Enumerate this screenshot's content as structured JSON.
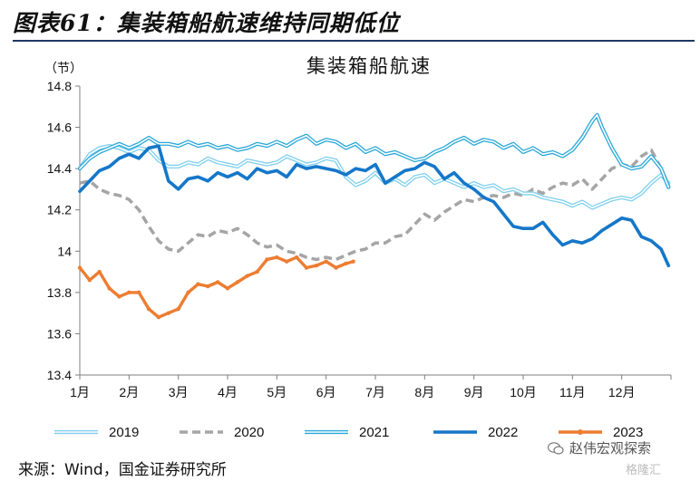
{
  "header": {
    "figure_title": "图表61：集装箱船航速维持同期低位"
  },
  "chart_data": {
    "type": "line",
    "title": "集装箱船航速",
    "yunit": "（节）",
    "ylim": [
      13.4,
      14.8
    ],
    "yticks": [
      13.4,
      13.6,
      13.8,
      14,
      14.2,
      14.4,
      14.6,
      14.8
    ],
    "ytick_labels": [
      "13.4",
      "13.6",
      "13.8",
      "14",
      "14.2",
      "14.4",
      "14.6",
      "14.8"
    ],
    "xlim": [
      1,
      13
    ],
    "x_month_labels": [
      "1月",
      "2月",
      "3月",
      "4月",
      "5月",
      "6月",
      "7月",
      "8月",
      "9月",
      "10月",
      "11月",
      "12月"
    ],
    "grid": false,
    "legend_position": "bottom",
    "series": [
      {
        "name": "2019",
        "color": "#7fcfee",
        "style": "double",
        "x": [
          1.0,
          1.2,
          1.4,
          1.6,
          1.8,
          2.0,
          2.2,
          2.4,
          2.6,
          2.8,
          3.0,
          3.2,
          3.4,
          3.6,
          3.8,
          4.0,
          4.2,
          4.4,
          4.6,
          4.8,
          5.0,
          5.2,
          5.4,
          5.6,
          5.8,
          6.0,
          6.2,
          6.4,
          6.6,
          6.8,
          7.0,
          7.2,
          7.4,
          7.6,
          7.8,
          8.0,
          8.2,
          8.4,
          8.6,
          8.8,
          9.0,
          9.2,
          9.4,
          9.6,
          9.8,
          10.0,
          10.2,
          10.4,
          10.6,
          10.8,
          11.0,
          11.2,
          11.4,
          11.6,
          11.8,
          12.0,
          12.2,
          12.4,
          12.6,
          12.8,
          12.95
        ],
        "values": [
          14.4,
          14.47,
          14.5,
          14.51,
          14.5,
          14.48,
          14.5,
          14.49,
          14.44,
          14.41,
          14.41,
          14.43,
          14.42,
          14.45,
          14.43,
          14.42,
          14.41,
          14.44,
          14.43,
          14.42,
          14.43,
          14.46,
          14.44,
          14.42,
          14.43,
          14.45,
          14.44,
          14.36,
          14.32,
          14.34,
          14.38,
          14.33,
          14.35,
          14.32,
          14.36,
          14.37,
          14.33,
          14.35,
          14.33,
          14.31,
          14.33,
          14.31,
          14.32,
          14.29,
          14.3,
          14.28,
          14.28,
          14.26,
          14.25,
          14.24,
          14.22,
          14.24,
          14.21,
          14.23,
          14.25,
          14.26,
          14.25,
          14.28,
          14.33,
          14.37,
          14.33
        ]
      },
      {
        "name": "2020",
        "color": "#a5a5a5",
        "style": "dashed",
        "x": [
          1.0,
          1.2,
          1.4,
          1.6,
          1.8,
          2.0,
          2.2,
          2.4,
          2.6,
          2.8,
          3.0,
          3.2,
          3.4,
          3.6,
          3.8,
          4.0,
          4.2,
          4.4,
          4.6,
          4.8,
          5.0,
          5.2,
          5.4,
          5.6,
          5.8,
          6.0,
          6.2,
          6.4,
          6.6,
          6.8,
          7.0,
          7.2,
          7.4,
          7.6,
          7.8,
          8.0,
          8.2,
          8.4,
          8.6,
          8.8,
          9.0,
          9.2,
          9.4,
          9.6,
          9.8,
          10.0,
          10.2,
          10.4,
          10.6,
          10.8,
          11.0,
          11.2,
          11.4,
          11.6,
          11.8,
          12.0,
          12.2,
          12.4,
          12.6,
          12.8,
          12.95
        ],
        "values": [
          14.33,
          14.34,
          14.3,
          14.28,
          14.27,
          14.25,
          14.2,
          14.12,
          14.05,
          14.01,
          14.0,
          14.04,
          14.08,
          14.07,
          14.1,
          14.09,
          14.11,
          14.08,
          14.04,
          14.02,
          14.03,
          14.0,
          13.99,
          13.97,
          13.96,
          13.97,
          13.96,
          13.98,
          14.0,
          14.01,
          14.04,
          14.04,
          14.07,
          14.08,
          14.13,
          14.18,
          14.15,
          14.19,
          14.22,
          14.25,
          14.24,
          14.26,
          14.27,
          14.26,
          14.28,
          14.27,
          14.3,
          14.28,
          14.31,
          14.33,
          14.32,
          14.35,
          14.3,
          14.35,
          14.4,
          14.42,
          14.41,
          14.46,
          14.49,
          14.4,
          14.32
        ]
      },
      {
        "name": "2021",
        "color": "#2aa7d8",
        "style": "double",
        "x": [
          1.0,
          1.2,
          1.4,
          1.6,
          1.8,
          2.0,
          2.2,
          2.4,
          2.6,
          2.8,
          3.0,
          3.2,
          3.4,
          3.6,
          3.8,
          4.0,
          4.2,
          4.4,
          4.6,
          4.8,
          5.0,
          5.2,
          5.4,
          5.6,
          5.8,
          6.0,
          6.2,
          6.4,
          6.6,
          6.8,
          7.0,
          7.2,
          7.4,
          7.6,
          7.8,
          8.0,
          8.2,
          8.4,
          8.6,
          8.8,
          9.0,
          9.2,
          9.4,
          9.6,
          9.8,
          10.0,
          10.2,
          10.4,
          10.6,
          10.8,
          11.0,
          11.2,
          11.4,
          11.5,
          11.6,
          11.8,
          12.0,
          12.2,
          12.4,
          12.6,
          12.8,
          12.95
        ],
        "values": [
          14.4,
          14.45,
          14.48,
          14.5,
          14.52,
          14.5,
          14.52,
          14.55,
          14.52,
          14.52,
          14.51,
          14.53,
          14.51,
          14.52,
          14.5,
          14.51,
          14.49,
          14.5,
          14.52,
          14.51,
          14.53,
          14.51,
          14.54,
          14.56,
          14.52,
          14.54,
          14.53,
          14.5,
          14.52,
          14.48,
          14.5,
          14.47,
          14.48,
          14.46,
          14.44,
          14.45,
          14.48,
          14.5,
          14.53,
          14.55,
          14.52,
          14.54,
          14.53,
          14.5,
          14.52,
          14.48,
          14.5,
          14.47,
          14.48,
          14.46,
          14.49,
          14.55,
          14.63,
          14.66,
          14.6,
          14.5,
          14.42,
          14.4,
          14.41,
          14.46,
          14.4,
          14.31
        ]
      },
      {
        "name": "2022",
        "color": "#1577c9",
        "style": "solid-thick",
        "x": [
          1.0,
          1.2,
          1.4,
          1.6,
          1.8,
          2.0,
          2.2,
          2.4,
          2.6,
          2.8,
          3.0,
          3.2,
          3.4,
          3.6,
          3.8,
          4.0,
          4.2,
          4.4,
          4.6,
          4.8,
          5.0,
          5.2,
          5.4,
          5.6,
          5.8,
          6.0,
          6.2,
          6.4,
          6.6,
          6.8,
          7.0,
          7.2,
          7.4,
          7.6,
          7.8,
          8.0,
          8.2,
          8.4,
          8.6,
          8.8,
          9.0,
          9.2,
          9.4,
          9.6,
          9.8,
          10.0,
          10.2,
          10.4,
          10.6,
          10.8,
          11.0,
          11.2,
          11.4,
          11.6,
          11.8,
          12.0,
          12.2,
          12.4,
          12.6,
          12.8,
          12.95
        ],
        "values": [
          14.29,
          14.34,
          14.39,
          14.41,
          14.45,
          14.47,
          14.45,
          14.5,
          14.51,
          14.34,
          14.3,
          14.35,
          14.36,
          14.34,
          14.38,
          14.36,
          14.38,
          14.35,
          14.4,
          14.38,
          14.39,
          14.36,
          14.42,
          14.4,
          14.41,
          14.4,
          14.39,
          14.37,
          14.4,
          14.39,
          14.42,
          14.33,
          14.36,
          14.39,
          14.4,
          14.43,
          14.41,
          14.35,
          14.38,
          14.33,
          14.3,
          14.26,
          14.24,
          14.18,
          14.12,
          14.11,
          14.11,
          14.14,
          14.08,
          14.03,
          14.05,
          14.04,
          14.06,
          14.1,
          14.13,
          14.16,
          14.15,
          14.07,
          14.05,
          14.01,
          13.93
        ]
      },
      {
        "name": "2023",
        "color": "#ed7d31",
        "style": "solid-marker",
        "x": [
          1.0,
          1.2,
          1.4,
          1.6,
          1.8,
          2.0,
          2.2,
          2.4,
          2.6,
          2.8,
          3.0,
          3.2,
          3.4,
          3.6,
          3.8,
          4.0,
          4.2,
          4.4,
          4.6,
          4.8,
          5.0,
          5.2,
          5.4,
          5.6,
          5.8,
          6.0,
          6.2,
          6.4,
          6.55
        ],
        "values": [
          13.92,
          13.86,
          13.9,
          13.82,
          13.78,
          13.8,
          13.8,
          13.72,
          13.68,
          13.7,
          13.72,
          13.8,
          13.84,
          13.83,
          13.85,
          13.82,
          13.85,
          13.88,
          13.9,
          13.96,
          13.97,
          13.95,
          13.97,
          13.92,
          13.93,
          13.95,
          13.92,
          13.94,
          13.95
        ]
      }
    ]
  },
  "legend": {
    "items": [
      {
        "label": "2019"
      },
      {
        "label": "2020"
      },
      {
        "label": "2021"
      },
      {
        "label": "2022"
      },
      {
        "label": "2023"
      }
    ]
  },
  "footer": {
    "source": "来源：Wind，国金证券研究所",
    "watermark": "赵伟宏观探索",
    "watermark_sub": "格隆汇"
  }
}
